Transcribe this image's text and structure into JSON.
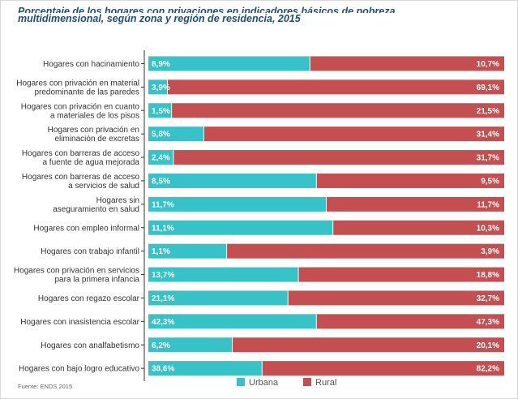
{
  "title_line1": "Porcentaje de los hogares con privaciones en indicadores básicos de pobreza",
  "title_line2": "multidimensional, según zona y región de residencia, 2015",
  "source": "Fuente: ENDS 2015",
  "colors": {
    "urbana": "#36c2c6",
    "rural": "#c44f50",
    "divider": "#ffffff"
  },
  "chart_data": {
    "type": "bar",
    "stacked": true,
    "orientation": "horizontal",
    "legend_position": "bottom",
    "categories": [
      [
        "Hogares con hacinamiento"
      ],
      [
        "Hogares con privación en material",
        "predominante de las paredes"
      ],
      [
        "Hogares con privación en cuanto",
        "a materiales de los pisos"
      ],
      [
        "Hogares con privación en",
        "eliminación de excretas"
      ],
      [
        "Hogares con barreras de acceso",
        "a fuente de agua mejorada"
      ],
      [
        "Hogares con barreras de acceso",
        "a servicios de salud"
      ],
      [
        "Hogares sin",
        "aseguramiento en salud"
      ],
      [
        "Hogares con empleo informal"
      ],
      [
        "Hogares con trabajo infantil"
      ],
      [
        "Hogares con privación en servicios",
        "para la primera infancia"
      ],
      [
        "Hogares con regazo escolar"
      ],
      [
        "Hogares con inasistencia escolar"
      ],
      [
        "Hogares con analfabetismo"
      ],
      [
        "Hogares con bajo logro educativo"
      ]
    ],
    "series": [
      {
        "name": "Urbana",
        "values": [
          8.9,
          3.9,
          1.5,
          5.8,
          2.4,
          8.5,
          11.7,
          11.1,
          1.1,
          13.7,
          21.1,
          42.3,
          6.2,
          38.6
        ],
        "labels": [
          "8,9%",
          "3,9%",
          "1,5%",
          "5,8%",
          "2,4%",
          "8,5%",
          "11,7%",
          "11,1%",
          "1,1%",
          "13,7%",
          "21,1%",
          "42,3%",
          "6,2%",
          "38,6%"
        ]
      },
      {
        "name": "Rural",
        "values": [
          10.7,
          69.1,
          21.5,
          31.4,
          31.7,
          9.5,
          11.7,
          10.3,
          3.9,
          18.8,
          32.7,
          47.3,
          20.1,
          82.2
        ],
        "labels": [
          "10,7%",
          "69,1%",
          "21,5%",
          "31,4%",
          "31,7%",
          "9,5%",
          "11,7%",
          "10,3%",
          "3,9%",
          "18,8%",
          "32,7%",
          "47,3%",
          "20,1%",
          "82,2%"
        ]
      }
    ],
    "urbana_share_of_bar": [
      0.454,
      0.0534,
      0.0652,
      0.1559,
      0.0704,
      0.4722,
      0.5,
      0.5187,
      0.22,
      0.4215,
      0.3922,
      0.4721,
      0.2358,
      0.3195
    ]
  }
}
